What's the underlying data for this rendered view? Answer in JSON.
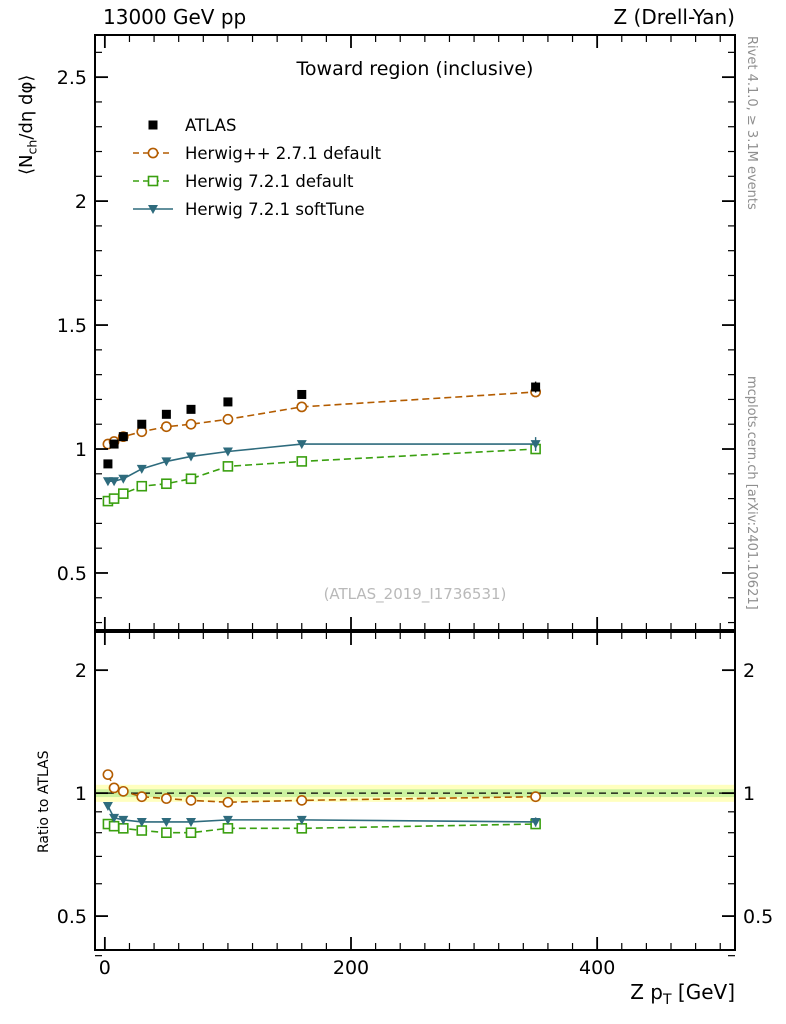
{
  "header": {
    "left": "13000 GeV pp",
    "right": "Z (Drell-Yan)"
  },
  "side_labels": {
    "rivet": "Rivet 4.1.0, ≥ 3.1M events",
    "mcplots": "mcplots.cern.ch [arXiv:2401.10621]"
  },
  "main_panel": {
    "title": "Toward region (inclusive)",
    "watermark": "(ATLAS_2019_I1736531)",
    "ylabel_html": "⟨N<sub>ch</sub>/dη dφ⟩"
  },
  "ratio_panel": {
    "ylabel": "Ratio to ATLAS"
  },
  "xaxis": {
    "label_html": "Z p<sub>T</sub> [GeV]"
  },
  "chart_data": {
    "type": "line",
    "title": "Toward region (inclusive)",
    "xlabel": "Z pT [GeV]",
    "ylabel": "<N_ch/deta dphi>",
    "x": [
      2.5,
      7.5,
      15,
      30,
      50,
      70,
      100,
      160,
      350
    ],
    "xlim": [
      -8,
      512
    ],
    "xticks": [
      0,
      200,
      400
    ],
    "xtick_labels": [
      "0",
      "200",
      "400"
    ],
    "x_minor_step": 20,
    "main": {
      "ylim": [
        0.27,
        2.67
      ],
      "yticks": [
        0.5,
        1,
        1.5,
        2,
        2.5
      ],
      "ytick_labels": [
        "0.5",
        "1",
        "1.5",
        "2",
        "2.5"
      ],
      "series": [
        {
          "name": "ATLAS",
          "color": "#000000",
          "marker": "square-filled",
          "line": "none",
          "values": [
            0.94,
            1.02,
            1.05,
            1.1,
            1.14,
            1.16,
            1.19,
            1.22,
            1.25
          ],
          "errors": [
            0.01,
            0.008,
            0.008,
            0.008,
            0.008,
            0.009,
            0.01,
            0.012,
            0.022
          ]
        },
        {
          "name": "Herwig++ 2.7.1 default",
          "color": "#b35c00",
          "marker": "circle-open",
          "line": "dashed",
          "values": [
            1.02,
            1.03,
            1.05,
            1.07,
            1.09,
            1.1,
            1.12,
            1.17,
            1.23
          ],
          "errors": [
            0,
            0,
            0,
            0,
            0,
            0,
            0,
            0.008,
            0.015
          ]
        },
        {
          "name": "Herwig 7.2.1 default",
          "color": "#3aa010",
          "marker": "square-open",
          "line": "dashed",
          "values": [
            0.79,
            0.8,
            0.82,
            0.85,
            0.86,
            0.88,
            0.93,
            0.95,
            1.0
          ],
          "errors": [
            0,
            0,
            0,
            0,
            0,
            0,
            0,
            0.008,
            0.02
          ]
        },
        {
          "name": "Herwig 7.2.1 softTune",
          "color": "#2e6b7d",
          "marker": "triangle-down-filled",
          "line": "solid",
          "values": [
            0.87,
            0.87,
            0.88,
            0.92,
            0.95,
            0.97,
            0.99,
            1.02,
            1.02
          ],
          "errors": [
            0,
            0,
            0,
            0,
            0,
            0,
            0.008,
            0.01,
            0.028
          ]
        }
      ]
    },
    "ratio": {
      "scale": "log",
      "ylim": [
        0.413,
        2.48
      ],
      "yticks": [
        0.5,
        1,
        2
      ],
      "ytick_labels": [
        "0.5",
        "1",
        "2"
      ],
      "minor_ticks": [
        0.4,
        0.6,
        0.7,
        0.8,
        0.9
      ],
      "reference_line": 1,
      "band": {
        "outer": [
          0.952,
          1.048
        ],
        "outer_color": "#ffffbf",
        "inner": [
          0.978,
          1.022
        ],
        "inner_color": "#ccf2a0"
      },
      "series": [
        {
          "name": "Herwig++ 2.7.1 default",
          "color": "#b35c00",
          "marker": "circle-open",
          "line": "dashed",
          "values": [
            1.11,
            1.03,
            1.01,
            0.98,
            0.97,
            0.96,
            0.95,
            0.96,
            0.98
          ],
          "errors": [
            0,
            0,
            0,
            0,
            0,
            0,
            0,
            0.008,
            0.012
          ]
        },
        {
          "name": "Herwig 7.2.1 default",
          "color": "#3aa010",
          "marker": "square-open",
          "line": "dashed",
          "values": [
            0.84,
            0.83,
            0.82,
            0.81,
            0.8,
            0.8,
            0.82,
            0.82,
            0.84
          ],
          "errors": [
            0,
            0,
            0,
            0,
            0,
            0,
            0,
            0.008,
            0.018
          ]
        },
        {
          "name": "Herwig 7.2.1 softTune",
          "color": "#2e6b7d",
          "marker": "triangle-down-filled",
          "line": "solid",
          "values": [
            0.93,
            0.87,
            0.86,
            0.85,
            0.85,
            0.85,
            0.86,
            0.86,
            0.85
          ],
          "errors": [
            0,
            0,
            0,
            0,
            0,
            0,
            0.006,
            0.008,
            0.022
          ]
        }
      ]
    }
  }
}
